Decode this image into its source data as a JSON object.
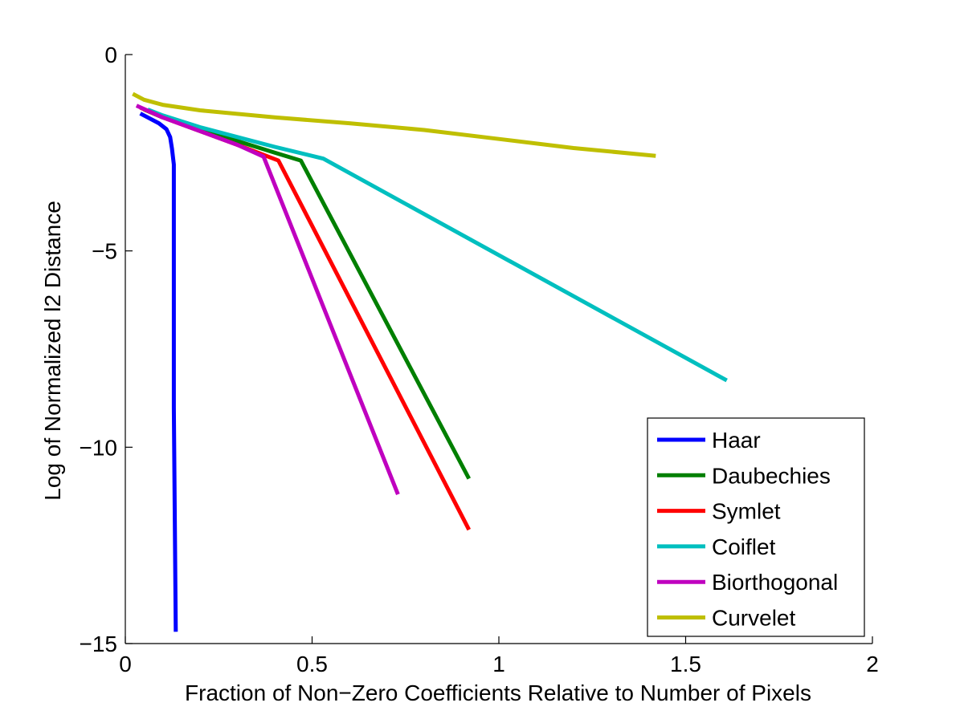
{
  "chart_data": {
    "type": "line",
    "title": "",
    "xlabel": "Fraction of Non−Zero Coefficients Relative to Number of Pixels",
    "ylabel": "Log of Normalized l2 Distance",
    "xlim": [
      0,
      2
    ],
    "ylim": [
      -15,
      0
    ],
    "xticks": [
      {
        "value": 0,
        "label": "0"
      },
      {
        "value": 0.5,
        "label": "0.5"
      },
      {
        "value": 1,
        "label": "1"
      },
      {
        "value": 1.5,
        "label": "1.5"
      },
      {
        "value": 2,
        "label": "2"
      }
    ],
    "yticks": [
      {
        "value": 0,
        "label": "0"
      },
      {
        "value": -5,
        "label": "−5"
      },
      {
        "value": -10,
        "label": "−10"
      },
      {
        "value": -15,
        "label": "−15"
      }
    ],
    "grid": false,
    "legend": "bottom-right",
    "series": [
      {
        "name": "Haar",
        "color": "#0000ff",
        "points": [
          [
            0.04,
            -1.5
          ],
          [
            0.06,
            -1.6
          ],
          [
            0.09,
            -1.75
          ],
          [
            0.11,
            -1.9
          ],
          [
            0.12,
            -2.1
          ],
          [
            0.125,
            -2.4
          ],
          [
            0.13,
            -2.8
          ],
          [
            0.13,
            -9.0
          ],
          [
            0.135,
            -14.7
          ]
        ]
      },
      {
        "name": "Daubechies",
        "color": "#007f00",
        "points": [
          [
            0.05,
            -1.4
          ],
          [
            0.1,
            -1.6
          ],
          [
            0.2,
            -1.9
          ],
          [
            0.3,
            -2.2
          ],
          [
            0.4,
            -2.5
          ],
          [
            0.47,
            -2.7
          ],
          [
            0.92,
            -10.8
          ]
        ]
      },
      {
        "name": "Symlet",
        "color": "#ff0000",
        "points": [
          [
            0.04,
            -1.35
          ],
          [
            0.1,
            -1.6
          ],
          [
            0.2,
            -1.95
          ],
          [
            0.3,
            -2.3
          ],
          [
            0.41,
            -2.7
          ],
          [
            0.92,
            -12.1
          ]
        ]
      },
      {
        "name": "Coiflet",
        "color": "#00bfbf",
        "points": [
          [
            0.06,
            -1.4
          ],
          [
            0.1,
            -1.55
          ],
          [
            0.2,
            -1.85
          ],
          [
            0.3,
            -2.1
          ],
          [
            0.4,
            -2.35
          ],
          [
            0.53,
            -2.65
          ],
          [
            1.61,
            -8.3
          ]
        ]
      },
      {
        "name": "Biorthogonal",
        "color": "#bf00bf",
        "points": [
          [
            0.03,
            -1.3
          ],
          [
            0.1,
            -1.6
          ],
          [
            0.2,
            -1.95
          ],
          [
            0.3,
            -2.3
          ],
          [
            0.37,
            -2.6
          ],
          [
            0.73,
            -11.2
          ]
        ]
      },
      {
        "name": "Curvelet",
        "color": "#bfbf00",
        "points": [
          [
            0.02,
            -1.0
          ],
          [
            0.05,
            -1.15
          ],
          [
            0.1,
            -1.28
          ],
          [
            0.2,
            -1.42
          ],
          [
            0.4,
            -1.6
          ],
          [
            0.6,
            -1.75
          ],
          [
            0.8,
            -1.92
          ],
          [
            1.0,
            -2.15
          ],
          [
            1.2,
            -2.38
          ],
          [
            1.42,
            -2.58
          ]
        ]
      }
    ]
  }
}
